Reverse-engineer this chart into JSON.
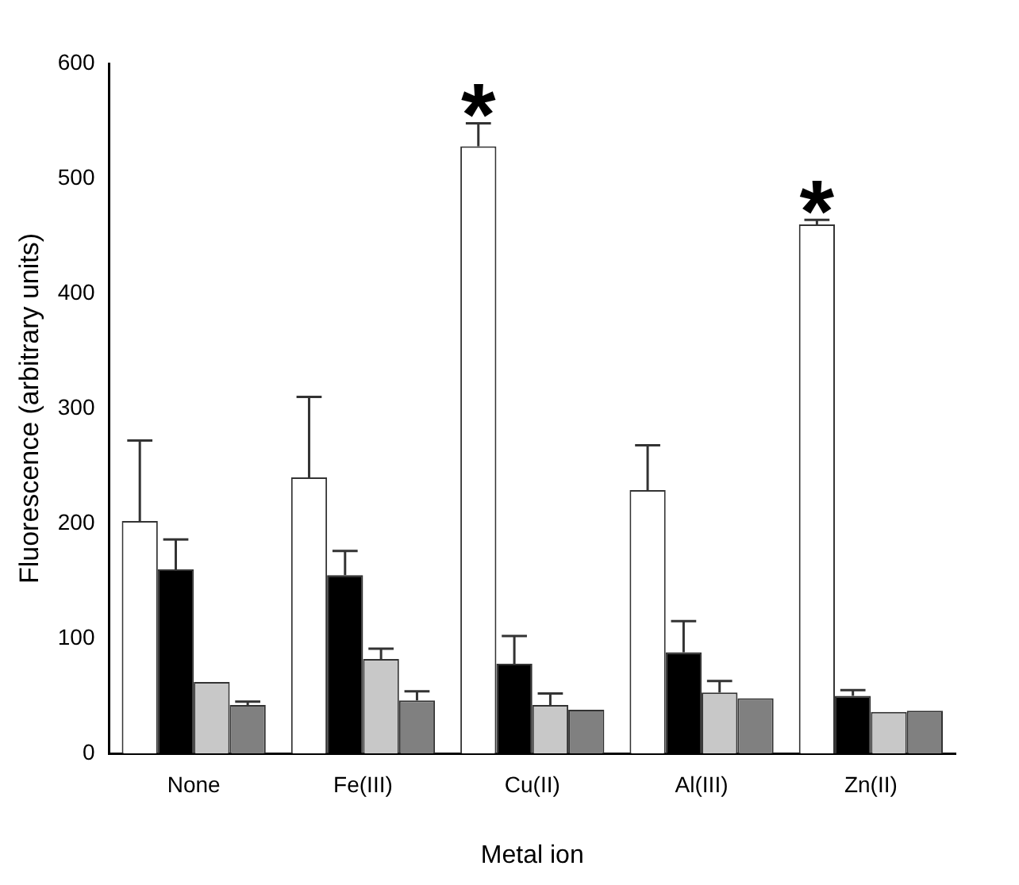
{
  "chart_data": {
    "type": "bar",
    "xlabel": "Metal ion",
    "ylabel": "Fluorescence (arbitrary units)",
    "categories": [
      "None",
      "Fe(III)",
      "Cu(II)",
      "Al(III)",
      "Zn(II)"
    ],
    "series": [
      {
        "color": "#ffffff",
        "values": [
          202,
          240,
          528,
          229,
          460
        ],
        "errors": [
          [
            202,
            272
          ],
          [
            240,
            310
          ],
          [
            528,
            548
          ],
          [
            229,
            268
          ],
          [
            460,
            464
          ]
        ],
        "value_labels": [
          null,
          null,
          "*",
          null,
          "*"
        ]
      },
      {
        "color": "#000000",
        "values": [
          160,
          155,
          78,
          88,
          50
        ],
        "errors": [
          [
            160,
            186
          ],
          [
            155,
            176
          ],
          [
            78,
            102
          ],
          [
            88,
            115
          ],
          [
            50,
            55
          ]
        ]
      },
      {
        "color": "#c8c8c8",
        "values": [
          62,
          82,
          42,
          53,
          36
        ],
        "errors": [
          null,
          [
            82,
            91
          ],
          [
            42,
            52
          ],
          [
            53,
            63
          ],
          null
        ]
      },
      {
        "color": "#808080",
        "values": [
          42,
          46,
          38,
          48,
          37
        ],
        "errors": [
          [
            42,
            45
          ],
          [
            46,
            54
          ],
          null,
          null,
          null
        ]
      }
    ],
    "ylim": [
      0,
      600
    ],
    "yticks": [
      0,
      100,
      200,
      300,
      400,
      500,
      600
    ],
    "grid": false,
    "legend": false
  }
}
